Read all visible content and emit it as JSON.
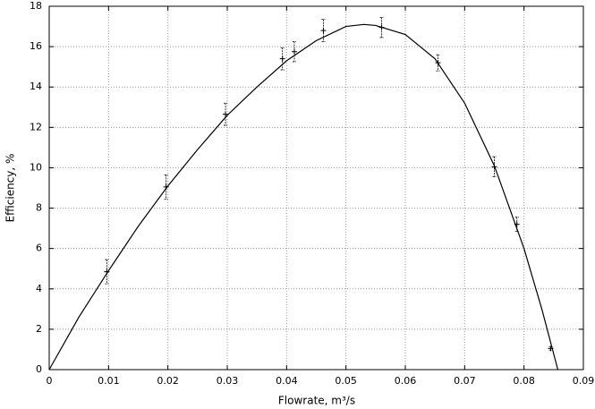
{
  "chart_data": {
    "type": "scatter",
    "x_label": "Flowrate, m³/s",
    "y_label": "Efficiency, %",
    "xlim": [
      0,
      0.09
    ],
    "ylim": [
      0,
      18
    ],
    "xticks": [
      0,
      0.01,
      0.02,
      0.03,
      0.04,
      0.05,
      0.06,
      0.07,
      0.08,
      0.09
    ],
    "yticks": [
      0,
      2,
      4,
      6,
      8,
      10,
      12,
      14,
      16,
      18
    ],
    "grid": true,
    "series": [
      {
        "type": "errorbar",
        "color": "#000000",
        "x": [
          0.0097,
          0.0197,
          0.0297,
          0.0393,
          0.0413,
          0.0462,
          0.056,
          0.0655,
          0.075,
          0.0788,
          0.0845
        ],
        "values": [
          4.85,
          9.05,
          12.65,
          15.4,
          15.75,
          16.8,
          16.95,
          15.2,
          10.05,
          7.2,
          1.05
        ],
        "errors": [
          0.6,
          0.6,
          0.55,
          0.55,
          0.5,
          0.55,
          0.5,
          0.4,
          0.5,
          0.35,
          0.08
        ]
      },
      {
        "type": "line",
        "color": "#000000",
        "x": [
          0,
          0.005,
          0.01,
          0.015,
          0.02,
          0.025,
          0.03,
          0.035,
          0.04,
          0.045,
          0.05,
          0.053,
          0.055,
          0.06,
          0.065,
          0.07,
          0.075,
          0.08,
          0.083,
          0.0857
        ],
        "values": [
          0,
          2.6,
          4.9,
          7.1,
          9.1,
          10.9,
          12.6,
          14.0,
          15.3,
          16.3,
          17.0,
          17.1,
          17.05,
          16.6,
          15.4,
          13.2,
          10.1,
          6.0,
          3.0,
          0
        ]
      }
    ]
  }
}
